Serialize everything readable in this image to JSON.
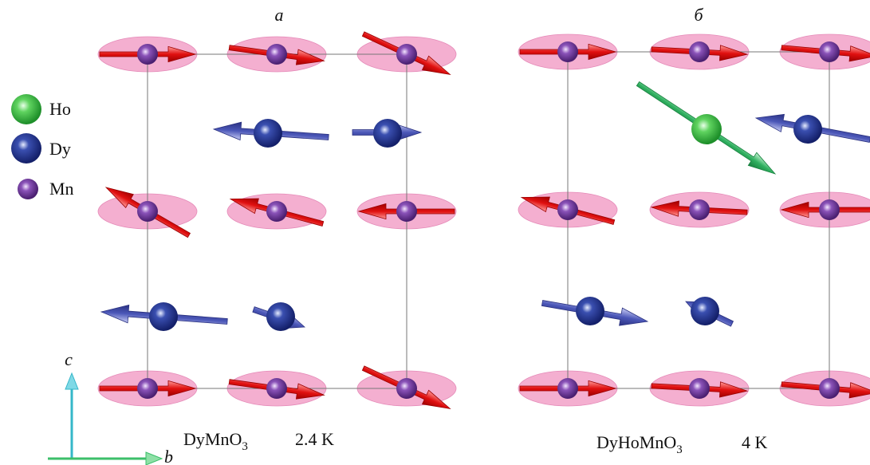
{
  "panels": [
    {
      "label": "a",
      "caption": {
        "formula": "DyMnO",
        "subscript": "3",
        "temperature": "2.4 K"
      }
    },
    {
      "label": "б",
      "caption": {
        "formula": "DyHoMnO",
        "subscript": "3",
        "temperature": "4 K"
      }
    }
  ],
  "legend": [
    {
      "label": "Ho"
    },
    {
      "label": "Dy"
    },
    {
      "label": "Mn"
    }
  ],
  "axes": {
    "vertical": "c",
    "horizontal": "b"
  }
}
